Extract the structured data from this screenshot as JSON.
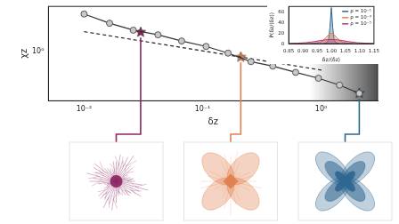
{
  "chart_data": [
    {
      "type": "line",
      "x_label": "δz",
      "y_label": "χz",
      "log": true,
      "grid": false,
      "legend": false,
      "xlim": [
        0.005,
        3
      ],
      "ylim": [
        0.3,
        3
      ],
      "xticks": [
        {
          "value": 0.01,
          "label": "10⁻²"
        },
        {
          "value": 0.1,
          "label": "10⁻¹"
        },
        {
          "value": 1,
          "label": "10⁰"
        }
      ],
      "yticks": [
        {
          "value": 1,
          "label": "10⁰"
        }
      ],
      "shaded_x": [
        0.8,
        3
      ],
      "series": [
        {
          "type": "line",
          "color": "#333333",
          "marker": "circle",
          "line_style": "solid",
          "x": [
            0.01,
            0.0164,
            0.026,
            0.042,
            0.0665,
            0.107,
            0.164,
            0.256,
            0.391,
            0.61,
            0.95,
            1.43,
            2.1
          ],
          "values": [
            2.49,
            1.99,
            1.68,
            1.5,
            1.29,
            1.13,
            0.96,
            0.78,
            0.7,
            0.6,
            0.52,
            0.44,
            0.36
          ]
        },
        {
          "type": "line",
          "color": "#222222",
          "marker": "none",
          "line_style": "dashed",
          "x": [
            0.01,
            1.04
          ],
          "values": [
            1.62,
            0.63
          ]
        },
        {
          "type": "scatter",
          "marker": "star",
          "colors": [
            "#8c2462",
            "#e0804f",
            "#2f6690"
          ],
          "x": [
            0.03,
            0.21,
            2.1
          ],
          "values": [
            1.6,
            0.87,
            0.36
          ]
        }
      ]
    },
    {
      "type": "area",
      "x_label": "δz/⟨δz⟩",
      "y_label": "P(δz/⟨δz⟩)",
      "grid": false,
      "legend": "upper right",
      "xlim": [
        0.85,
        1.15
      ],
      "ylim": [
        0,
        70
      ],
      "xticks": [
        {
          "value": 0.85,
          "label": "0.85"
        },
        {
          "value": 0.9,
          "label": "0.90"
        },
        {
          "value": 0.95,
          "label": "0.95"
        },
        {
          "value": 1,
          "label": "1.00"
        },
        {
          "value": 1.05,
          "label": "1.05"
        },
        {
          "value": 1.1,
          "label": "1.10"
        },
        {
          "value": 1.15,
          "label": "1.15"
        }
      ],
      "yticks": [
        0,
        20,
        40,
        60
      ],
      "series": [
        {
          "name": "ρ = 10⁻¹",
          "color": "#2f6690",
          "x": [
            0.97,
            0.98,
            0.99,
            0.995,
            1.0,
            1.005,
            1.01,
            1.02,
            1.03
          ],
          "values": [
            0,
            1,
            6,
            30,
            68,
            30,
            6,
            1,
            0
          ]
        },
        {
          "name": "ρ = 10⁻³",
          "color": "#e0804f",
          "x": [
            0.92,
            0.94,
            0.96,
            0.97,
            0.98,
            0.99,
            1.0,
            1.01,
            1.02,
            1.03,
            1.04,
            1.06,
            1.08
          ],
          "values": [
            0,
            1,
            3,
            6,
            11,
            17,
            20,
            17,
            11,
            6,
            3,
            1,
            0
          ]
        },
        {
          "name": "ρ = 10⁻⁵",
          "color": "#b03a7a",
          "x": [
            0.85,
            0.88,
            0.91,
            0.94,
            0.96,
            0.98,
            1.0,
            1.02,
            1.04,
            1.06,
            1.09,
            1.12,
            1.15
          ],
          "values": [
            0.5,
            1,
            2,
            4,
            6,
            7.5,
            8,
            7.5,
            6,
            4,
            2,
            1,
            0.5
          ]
        }
      ]
    }
  ]
}
